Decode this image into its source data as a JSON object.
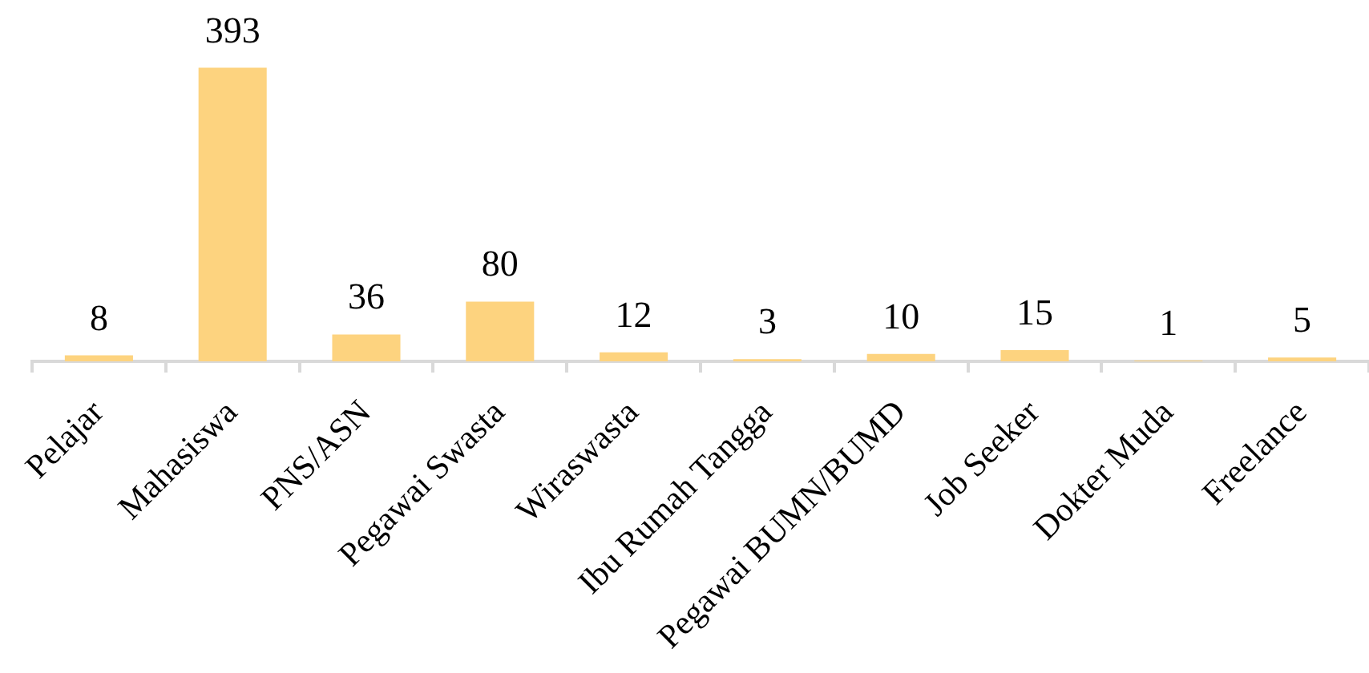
{
  "chart_data": {
    "type": "bar",
    "categories": [
      "Pelajar",
      "Mahasiswa",
      "PNS/ASN",
      "Pegawai Swasta",
      "Wiraswasta",
      "Ibu Rumah Tangga",
      "Pegawai BUMN/BUMD",
      "Job Seeker",
      "Dokter Muda",
      "Freelance"
    ],
    "values": [
      8,
      393,
      36,
      80,
      12,
      3,
      10,
      15,
      1,
      5
    ],
    "color": "#fdd37f",
    "data_labels": true,
    "grid": false,
    "legend": false
  }
}
